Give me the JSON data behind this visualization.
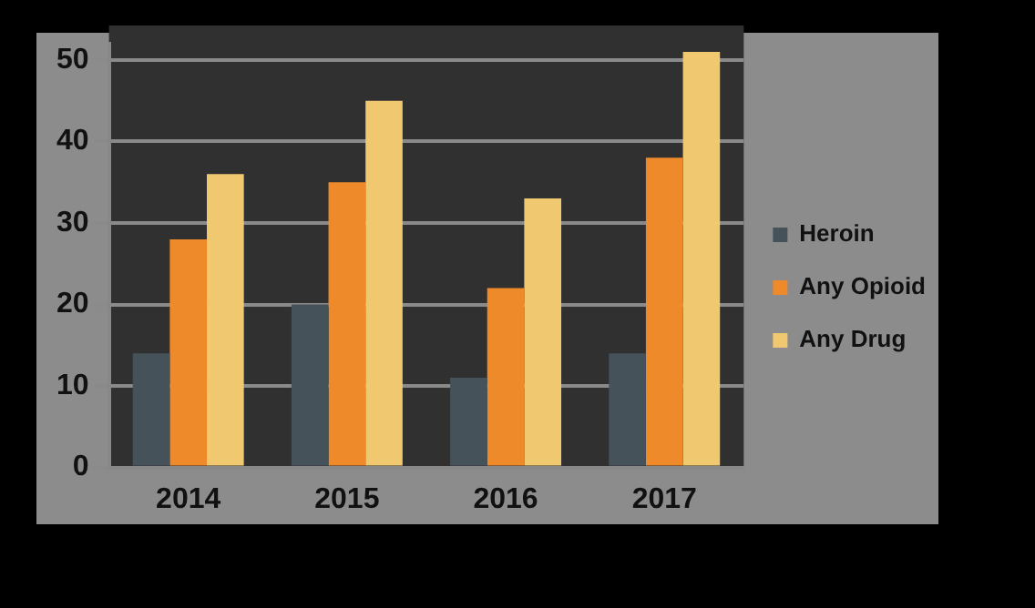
{
  "chart_data": {
    "type": "bar",
    "categories": [
      "2014",
      "2015",
      "2016",
      "2017"
    ],
    "series": [
      {
        "name": "Heroin",
        "color": "#46525a",
        "values": [
          14,
          20,
          11,
          14
        ]
      },
      {
        "name": "Any Opioid",
        "color": "#ee8a2a",
        "values": [
          28,
          35,
          22,
          38
        ]
      },
      {
        "name": "Any Drug",
        "color": "#f0c870",
        "values": [
          36,
          45,
          33,
          51
        ]
      }
    ],
    "ylim": [
      0,
      52
    ],
    "yticks": [
      0,
      10,
      20,
      30,
      40,
      50
    ],
    "grid": "y",
    "legend": "right"
  }
}
